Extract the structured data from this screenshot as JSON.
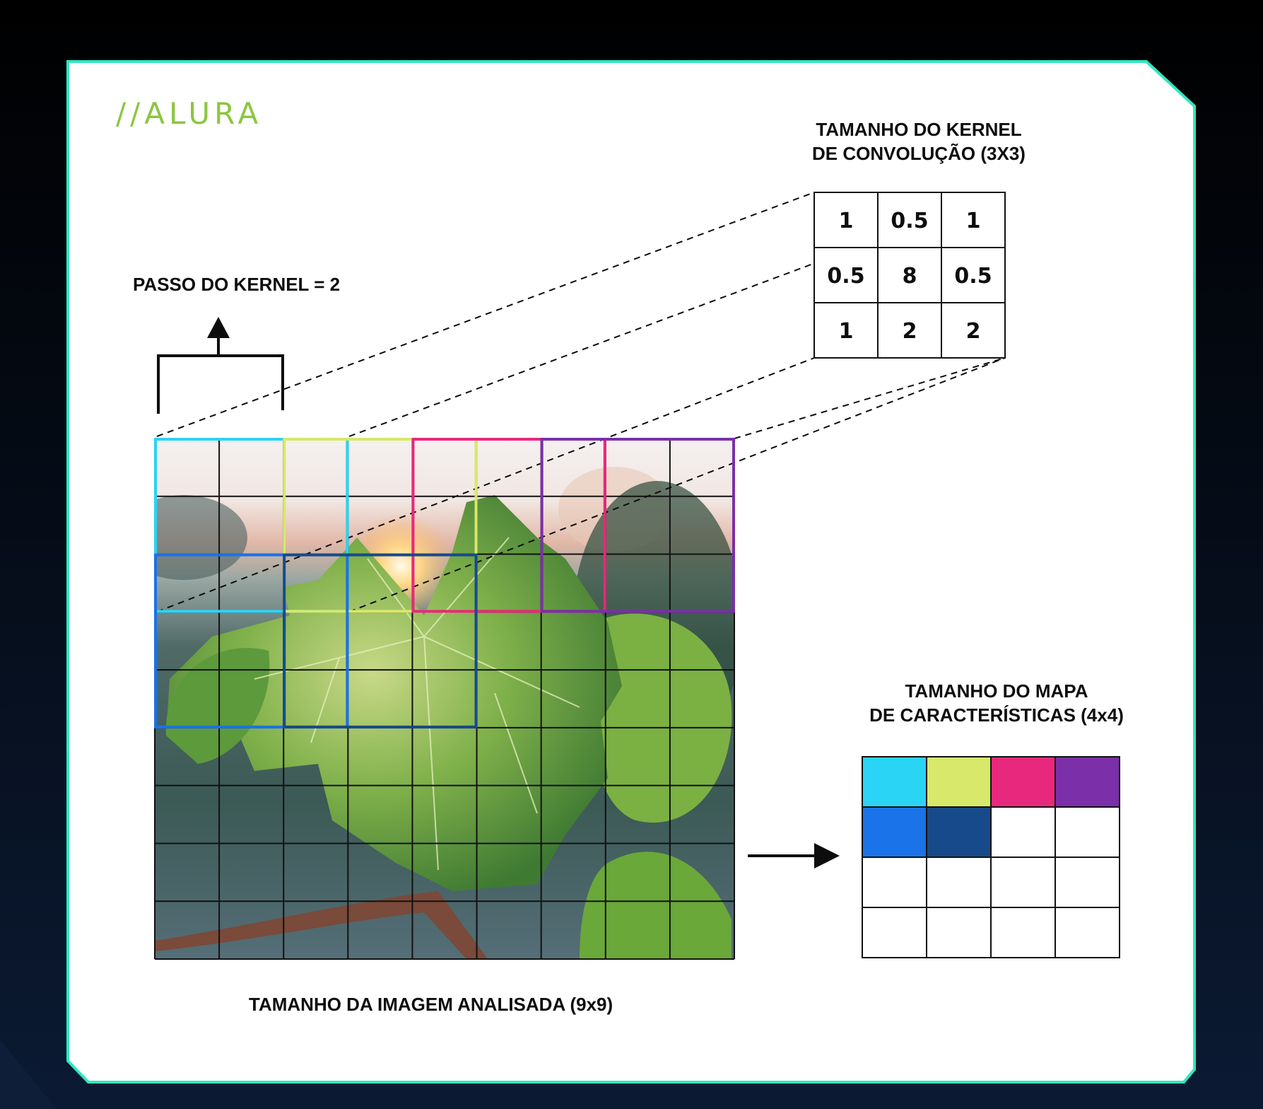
{
  "brand": {
    "logo_text": "//ALURA"
  },
  "labels": {
    "kernel_title_line1": "TAMANHO DO KERNEL",
    "kernel_title_line2": "DE CONVOLUÇÃO (3X3)",
    "stride": "PASSO DO KERNEL = 2",
    "feature_map_line1": "TAMANHO DO MAPA",
    "feature_map_line2": "DE CARACTERÍSTICAS (4x4)",
    "image_size": "TAMANHO DA IMAGEM ANALISADA (9x9)"
  },
  "kernel": {
    "rows": [
      [
        "1",
        "0.5",
        "1"
      ],
      [
        "0.5",
        "8",
        "0.5"
      ],
      [
        "1",
        "2",
        "2"
      ]
    ]
  },
  "image_grid": {
    "rows": 9,
    "cols": 9
  },
  "kernel_windows": [
    {
      "color": "#2ad4f5",
      "row": 0,
      "col": 0
    },
    {
      "color": "#d8e86a",
      "row": 0,
      "col": 2
    },
    {
      "color": "#e8287c",
      "row": 0,
      "col": 4
    },
    {
      "color": "#7b2fa8",
      "row": 0,
      "col": 6
    },
    {
      "color": "#1a73e8",
      "row": 2,
      "col": 0
    },
    {
      "color": "#174a8a",
      "row": 2,
      "col": 2
    }
  ],
  "feature_map": {
    "rows": 4,
    "cols": 4,
    "filled": [
      [
        "#2ad4f5",
        "#d8e86a",
        "#e8287c",
        "#7b2fa8"
      ],
      [
        "#1a73e8",
        "#174a8a",
        "",
        ""
      ],
      [
        "",
        "",
        "",
        ""
      ],
      [
        "",
        "",
        "",
        ""
      ]
    ]
  },
  "colors": {
    "frame_border": "#2ee8c0",
    "background_dark": "#0c1a30",
    "logo": "#8cc63f"
  }
}
